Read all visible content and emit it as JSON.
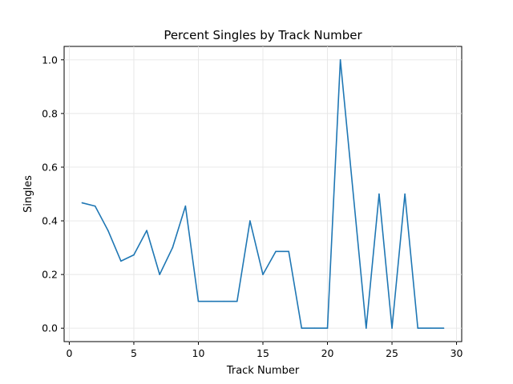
{
  "chart_data": {
    "type": "line",
    "title": "Percent Singles by Track Number",
    "xlabel": "Track Number",
    "ylabel": "Singles",
    "xlim": [
      -0.4,
      30.4
    ],
    "ylim": [
      -0.05,
      1.05
    ],
    "x_ticks": [
      0,
      5,
      10,
      15,
      20,
      25,
      30
    ],
    "y_ticks": [
      0.0,
      0.2,
      0.4,
      0.6,
      0.8,
      1.0
    ],
    "x_tick_labels": [
      "0",
      "5",
      "10",
      "15",
      "20",
      "25",
      "30"
    ],
    "y_tick_labels": [
      "0.0",
      "0.2",
      "0.4",
      "0.6",
      "0.8",
      "1.0"
    ],
    "grid": true,
    "line_color": "#1f77b4",
    "series": [
      {
        "x": [
          1,
          2,
          3,
          4,
          5,
          6,
          7,
          8,
          9,
          10,
          11,
          12,
          13,
          14,
          15,
          16,
          17,
          18,
          19,
          20,
          21,
          22,
          23,
          24,
          25,
          26,
          27,
          28,
          29
        ],
        "values": [
          0.467,
          0.455,
          0.364,
          0.25,
          0.273,
          0.364,
          0.2,
          0.3,
          0.455,
          0.1,
          0.1,
          0.1,
          0.1,
          0.4,
          0.2,
          0.286,
          0.286,
          0.0,
          0.0,
          0.0,
          1.0,
          0.5,
          0.0,
          0.5,
          0.0,
          0.5,
          0.0,
          0.0,
          0.0
        ]
      }
    ]
  }
}
